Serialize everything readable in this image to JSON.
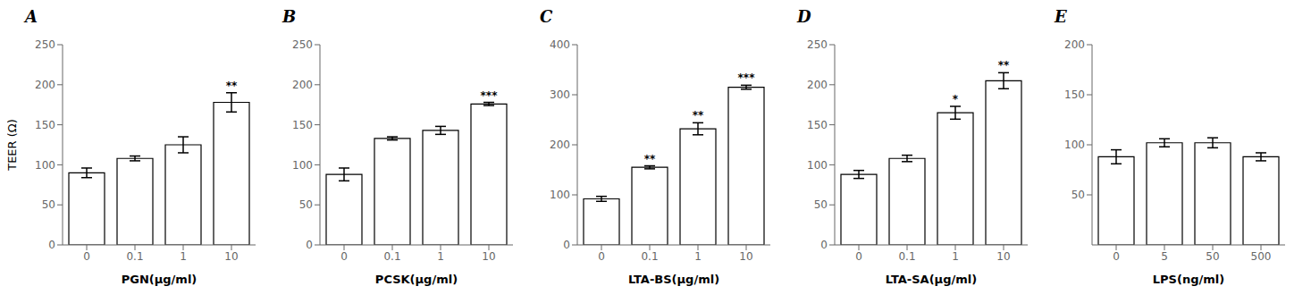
{
  "chart_data": [
    {
      "type": "bar",
      "title": "A",
      "xlabel": "PGN(μg/ml)",
      "ylabel": "TEER (Ω)",
      "categories": [
        "0",
        "0.1",
        "1",
        "10"
      ],
      "values": [
        90,
        108,
        125,
        178
      ],
      "errors": [
        6,
        3,
        10,
        12
      ],
      "annotations": [
        {
          "category": "10",
          "text": "**"
        }
      ],
      "ylim": [
        0,
        250
      ],
      "yticks": [
        0,
        50,
        100,
        150,
        200,
        250
      ],
      "color": "white",
      "grid": false
    },
    {
      "type": "bar",
      "title": "B",
      "xlabel": "PCSK(μg/ml)",
      "categories": [
        "0",
        "0.1",
        "1",
        "10"
      ],
      "values": [
        88,
        133,
        143,
        176
      ],
      "errors": [
        8,
        2,
        5,
        2
      ],
      "annotations": [
        {
          "category": "10",
          "text": "***"
        }
      ],
      "ylim": [
        0,
        250
      ],
      "yticks": [
        0,
        50,
        100,
        150,
        200,
        250
      ],
      "color": "white",
      "grid": false
    },
    {
      "type": "bar",
      "title": "C",
      "xlabel": "LTA-BS(μg/ml)",
      "categories": [
        "0",
        "0.1",
        "1",
        "10"
      ],
      "values": [
        92,
        155,
        232,
        315
      ],
      "errors": [
        5,
        3,
        12,
        4
      ],
      "annotations": [
        {
          "category": "0.1",
          "text": "**"
        },
        {
          "category": "1",
          "text": "**"
        },
        {
          "category": "10",
          "text": "***"
        }
      ],
      "ylim": [
        0,
        400
      ],
      "yticks": [
        0,
        100,
        200,
        300,
        400
      ],
      "color": "white",
      "grid": false
    },
    {
      "type": "bar",
      "title": "D",
      "xlabel": "LTA-SA(μg/ml)",
      "categories": [
        "0",
        "0.1",
        "1",
        "10"
      ],
      "values": [
        88,
        108,
        165,
        205
      ],
      "errors": [
        5,
        4,
        8,
        10
      ],
      "annotations": [
        {
          "category": "1",
          "text": "*"
        },
        {
          "category": "10",
          "text": "**"
        }
      ],
      "ylim": [
        0,
        250
      ],
      "yticks": [
        0,
        50,
        100,
        150,
        200,
        250
      ],
      "color": "white",
      "grid": false
    },
    {
      "type": "bar",
      "title": "E",
      "xlabel": "LPS(ng/ml)",
      "categories": [
        "0",
        "5",
        "50",
        "500"
      ],
      "values": [
        88,
        102,
        102,
        88
      ],
      "errors": [
        7,
        4,
        5,
        4
      ],
      "annotations": [],
      "ylim": [
        0,
        200
      ],
      "yticks": [
        50,
        100,
        150,
        200
      ],
      "color": "white",
      "grid": false
    }
  ]
}
